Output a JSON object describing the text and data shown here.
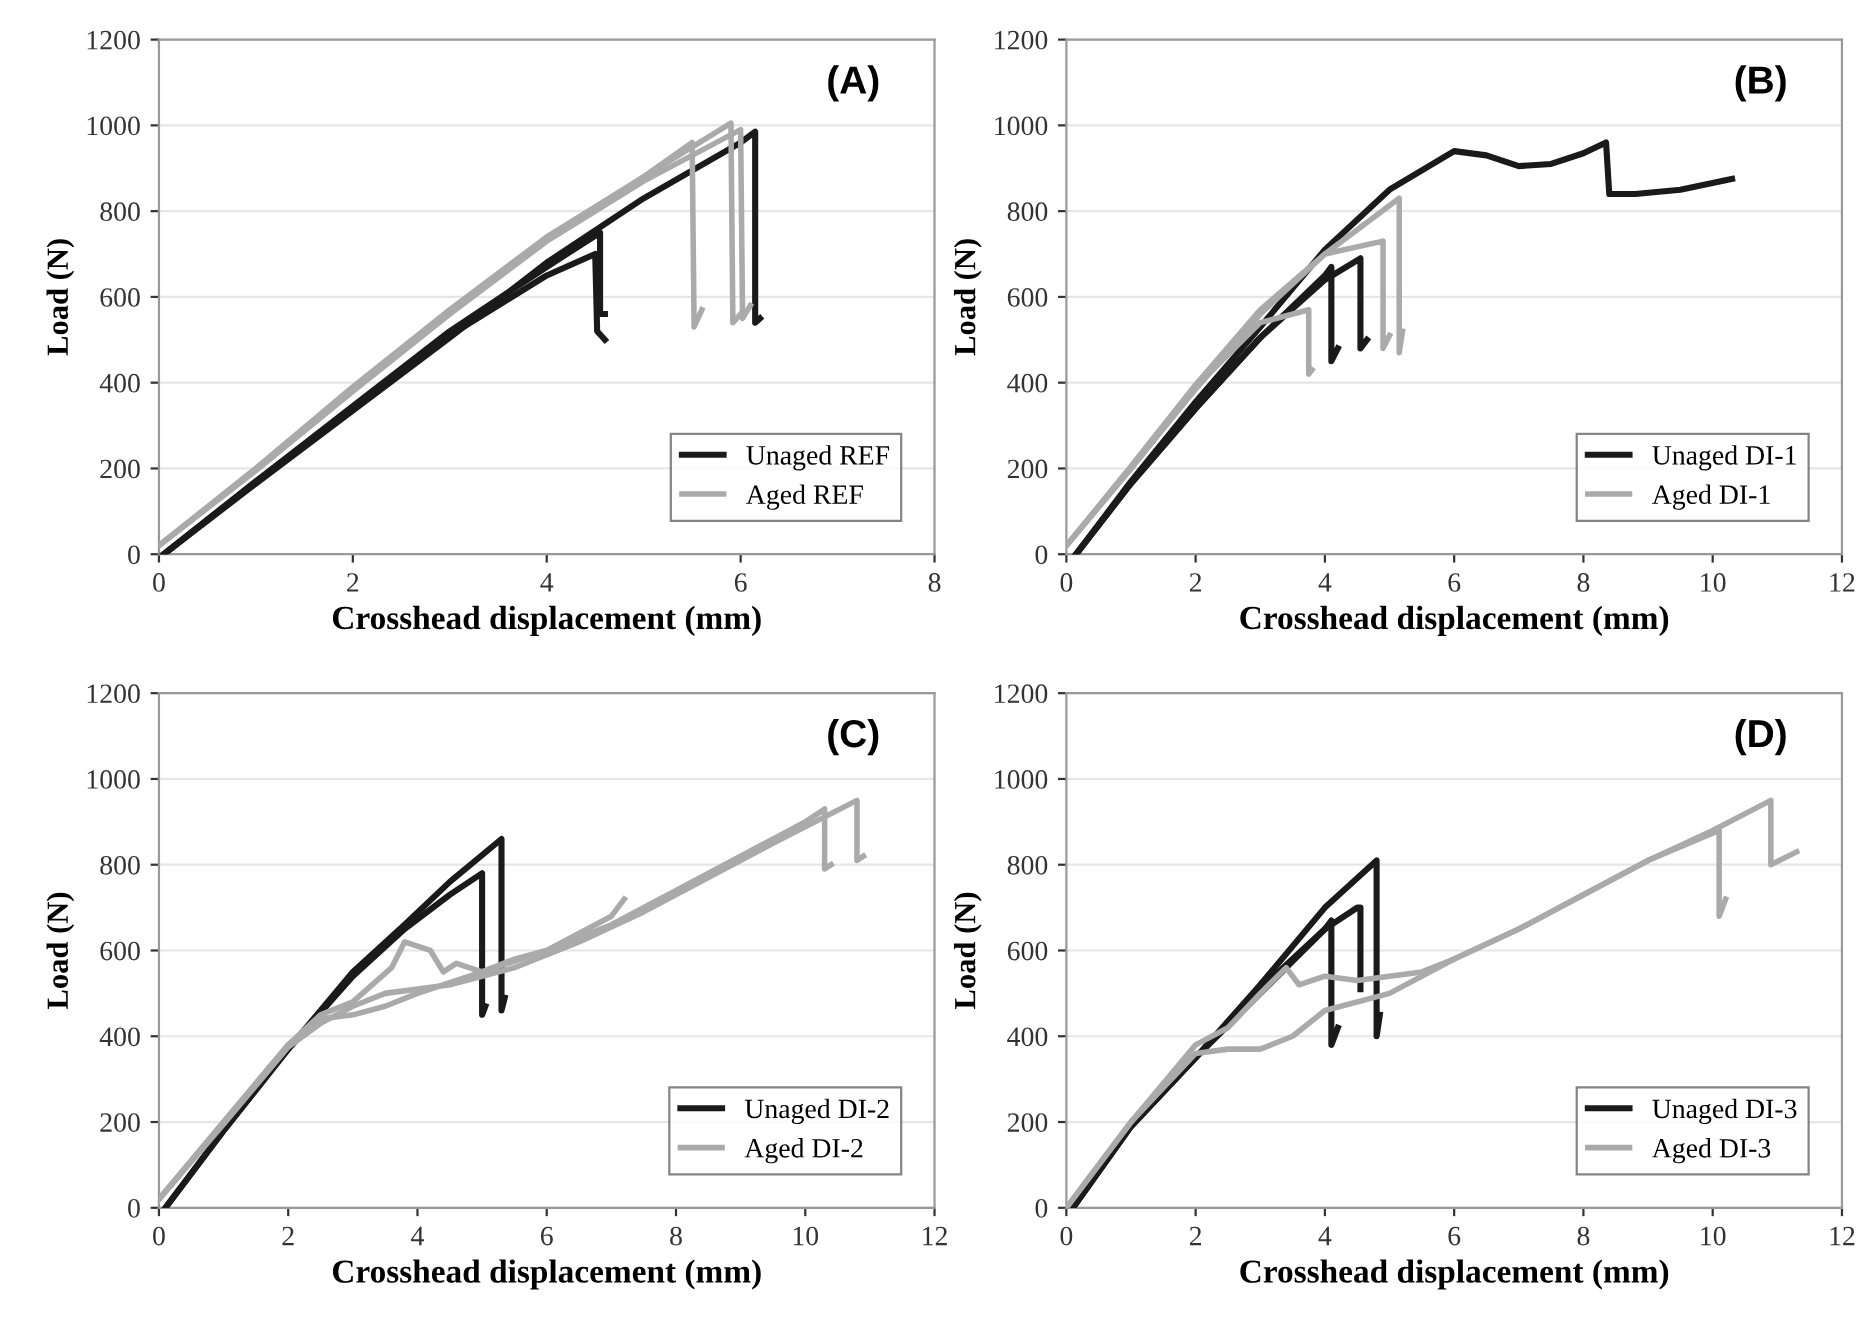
{
  "chart_data": [
    {
      "type": "line",
      "title": "(A)",
      "xlabel": "Crosshead displacement (mm)",
      "ylabel": "Load (N)",
      "xlim": [
        0,
        8
      ],
      "xticks": [
        0,
        2,
        4,
        6,
        8
      ],
      "ylim": [
        0,
        1200
      ],
      "yticks": [
        0,
        200,
        400,
        600,
        800,
        1000,
        1200
      ],
      "grid": "y",
      "legend": "bottom right",
      "marker": "none",
      "line_style": "solid",
      "series": [
        {
          "name": "Unaged REF",
          "color": "#1a1a1a",
          "x": [
            0.05,
            1,
            2,
            3,
            4,
            4.5,
            4.52,
            4.6
          ],
          "values": [
            0,
            170,
            340,
            510,
            650,
            700,
            520,
            500
          ]
        },
        {
          "color": "#1a1a1a",
          "x": [
            0.05,
            1,
            2,
            3,
            4,
            5,
            6,
            6.15,
            6.15,
            6.2
          ],
          "values": [
            0,
            165,
            335,
            505,
            680,
            830,
            960,
            985,
            540,
            550
          ]
        },
        {
          "color": "#1a1a1a",
          "x": [
            0.05,
            1,
            2,
            3,
            4,
            4.55,
            4.55,
            4.6
          ],
          "values": [
            0,
            170,
            345,
            520,
            670,
            750,
            560,
            560
          ]
        },
        {
          "name": "Aged REF",
          "color": "#aaaaaa",
          "x": [
            0,
            1,
            2,
            3,
            4,
            5,
            5.5,
            5.52,
            5.6
          ],
          "values": [
            20,
            200,
            390,
            570,
            740,
            880,
            960,
            530,
            570
          ]
        },
        {
          "color": "#aaaaaa",
          "x": [
            0,
            1,
            2,
            3,
            4,
            5,
            5.9,
            5.92,
            6.0
          ],
          "values": [
            20,
            200,
            385,
            565,
            735,
            880,
            1005,
            540,
            560
          ]
        },
        {
          "color": "#aaaaaa",
          "x": [
            0,
            1,
            2,
            3,
            4,
            5,
            6.0,
            6.02,
            6.1
          ],
          "values": [
            20,
            195,
            380,
            560,
            730,
            870,
            990,
            550,
            580
          ]
        }
      ]
    },
    {
      "type": "line",
      "title": "(B)",
      "xlabel": "Crosshead displacement (mm)",
      "ylabel": "Load (N)",
      "xlim": [
        0,
        12
      ],
      "xticks": [
        0,
        2,
        4,
        6,
        8,
        10,
        12
      ],
      "ylim": [
        0,
        1200
      ],
      "yticks": [
        0,
        200,
        400,
        600,
        800,
        1000,
        1200
      ],
      "grid": "y",
      "legend": "bottom right",
      "marker": "none",
      "line_style": "solid",
      "series": [
        {
          "name": "Unaged DI-1",
          "color": "#1a1a1a",
          "x": [
            0.15,
            1,
            2,
            3,
            4,
            5,
            6,
            6.5,
            7,
            7.5,
            8,
            8.35,
            8.4,
            8.8,
            9.5,
            10.3
          ],
          "values": [
            0,
            170,
            355,
            530,
            710,
            850,
            940,
            930,
            905,
            910,
            935,
            960,
            840,
            840,
            850,
            875
          ]
        },
        {
          "color": "#1a1a1a",
          "x": [
            0.15,
            1,
            2,
            3,
            4,
            4.1,
            4.1,
            4.2
          ],
          "values": [
            0,
            165,
            340,
            505,
            650,
            670,
            450,
            480
          ]
        },
        {
          "color": "#1a1a1a",
          "x": [
            0.15,
            1,
            2,
            3,
            4,
            4.55,
            4.55,
            4.65
          ],
          "values": [
            0,
            165,
            340,
            505,
            640,
            690,
            480,
            500
          ]
        },
        {
          "name": "Aged DI-1",
          "color": "#aaaaaa",
          "x": [
            0,
            1,
            2,
            3,
            3.75,
            3.75,
            3.8
          ],
          "values": [
            20,
            200,
            390,
            540,
            570,
            420,
            430
          ]
        },
        {
          "color": "#aaaaaa",
          "x": [
            0,
            1,
            2,
            3,
            4,
            4.9,
            4.9,
            5.0
          ],
          "values": [
            20,
            205,
            395,
            570,
            700,
            730,
            480,
            510
          ]
        },
        {
          "color": "#aaaaaa",
          "x": [
            0,
            1,
            2,
            3,
            4,
            5.15,
            5.15,
            5.2
          ],
          "values": [
            20,
            200,
            385,
            560,
            700,
            830,
            470,
            520
          ]
        }
      ]
    },
    {
      "type": "line",
      "title": "(C)",
      "xlabel": "Crosshead displacement (mm)",
      "ylabel": "Load (N)",
      "xlim": [
        0,
        12
      ],
      "xticks": [
        0,
        2,
        4,
        6,
        8,
        10,
        12
      ],
      "ylim": [
        0,
        1200
      ],
      "yticks": [
        0,
        200,
        400,
        600,
        800,
        1000,
        1200
      ],
      "grid": "y",
      "legend": "bottom right",
      "marker": "none",
      "line_style": "solid",
      "series": [
        {
          "name": "Unaged DI-2",
          "color": "#1a1a1a",
          "x": [
            0.1,
            1,
            2,
            3,
            3.8,
            4.5,
            5.0,
            5.0,
            5.05
          ],
          "values": [
            0,
            180,
            370,
            540,
            650,
            730,
            780,
            450,
            470
          ]
        },
        {
          "color": "#1a1a1a",
          "x": [
            0.1,
            1,
            2,
            3,
            3.8,
            4.5,
            5.3,
            5.3,
            5.35
          ],
          "values": [
            0,
            180,
            370,
            550,
            660,
            760,
            860,
            460,
            490
          ]
        },
        {
          "name": "Aged DI-2",
          "color": "#aaaaaa",
          "x": [
            0,
            1,
            2,
            2.5,
            3,
            3.6,
            3.8,
            4.2,
            4.4,
            4.6,
            5,
            5.5,
            6,
            7,
            7.2
          ],
          "values": [
            20,
            200,
            380,
            450,
            480,
            560,
            620,
            600,
            550,
            570,
            550,
            580,
            600,
            680,
            720
          ]
        },
        {
          "color": "#aaaaaa",
          "x": [
            0,
            1,
            2,
            2.5,
            3,
            3.5,
            4,
            5,
            6,
            7,
            8,
            9,
            10,
            10.3,
            10.3,
            10.4
          ],
          "values": [
            20,
            200,
            380,
            440,
            450,
            470,
            500,
            550,
            600,
            660,
            740,
            820,
            900,
            930,
            790,
            800
          ]
        },
        {
          "color": "#aaaaaa",
          "x": [
            0,
            1,
            2,
            2.5,
            3,
            3.5,
            4.5,
            5.5,
            6.5,
            7.5,
            8.5,
            9.5,
            10.8,
            10.8,
            10.9
          ],
          "values": [
            20,
            195,
            375,
            430,
            470,
            500,
            520,
            560,
            620,
            690,
            770,
            850,
            950,
            810,
            820
          ]
        }
      ]
    },
    {
      "type": "line",
      "title": "(D)",
      "xlabel": "Crosshead displacement (mm)",
      "ylabel": "Load (N)",
      "xlim": [
        0,
        12
      ],
      "xticks": [
        0,
        2,
        4,
        6,
        8,
        10,
        12
      ],
      "ylim": [
        0,
        1200
      ],
      "yticks": [
        0,
        200,
        400,
        600,
        800,
        1000,
        1200
      ],
      "grid": "y",
      "legend": "bottom right",
      "marker": "none",
      "line_style": "solid",
      "series": [
        {
          "name": "Unaged DI-3",
          "color": "#1a1a1a",
          "x": [
            0.1,
            1,
            2,
            3,
            4,
            4.8,
            4.8,
            4.85
          ],
          "values": [
            0,
            190,
            350,
            520,
            700,
            810,
            400,
            450
          ]
        },
        {
          "color": "#1a1a1a",
          "x": [
            0.1,
            1,
            2,
            3,
            4,
            4.5,
            4.55,
            4.55
          ],
          "values": [
            0,
            190,
            350,
            510,
            650,
            700,
            700,
            510
          ]
        },
        {
          "color": "#1a1a1a",
          "x": [
            0.1,
            1,
            2,
            3,
            4,
            4.1,
            4.1,
            4.2
          ],
          "values": [
            0,
            190,
            350,
            500,
            650,
            670,
            380,
            420
          ]
        },
        {
          "name": "Aged DI-3",
          "color": "#aaaaaa",
          "x": [
            0,
            1,
            2,
            2.5,
            3,
            3.4,
            3.6,
            4,
            4.5,
            5,
            5.5,
            6,
            7,
            8,
            9,
            10,
            10.9,
            10.9,
            11.3
          ],
          "values": [
            0,
            200,
            380,
            420,
            500,
            560,
            520,
            540,
            530,
            540,
            550,
            580,
            650,
            730,
            810,
            880,
            950,
            800,
            830
          ]
        },
        {
          "color": "#aaaaaa",
          "x": [
            0,
            1,
            2,
            2.5,
            3,
            3.5,
            4,
            5,
            6,
            7,
            8,
            9,
            10.1,
            10.1,
            10.2
          ],
          "values": [
            0,
            200,
            360,
            370,
            370,
            400,
            460,
            500,
            580,
            650,
            730,
            810,
            880,
            680,
            720
          ]
        }
      ]
    }
  ]
}
